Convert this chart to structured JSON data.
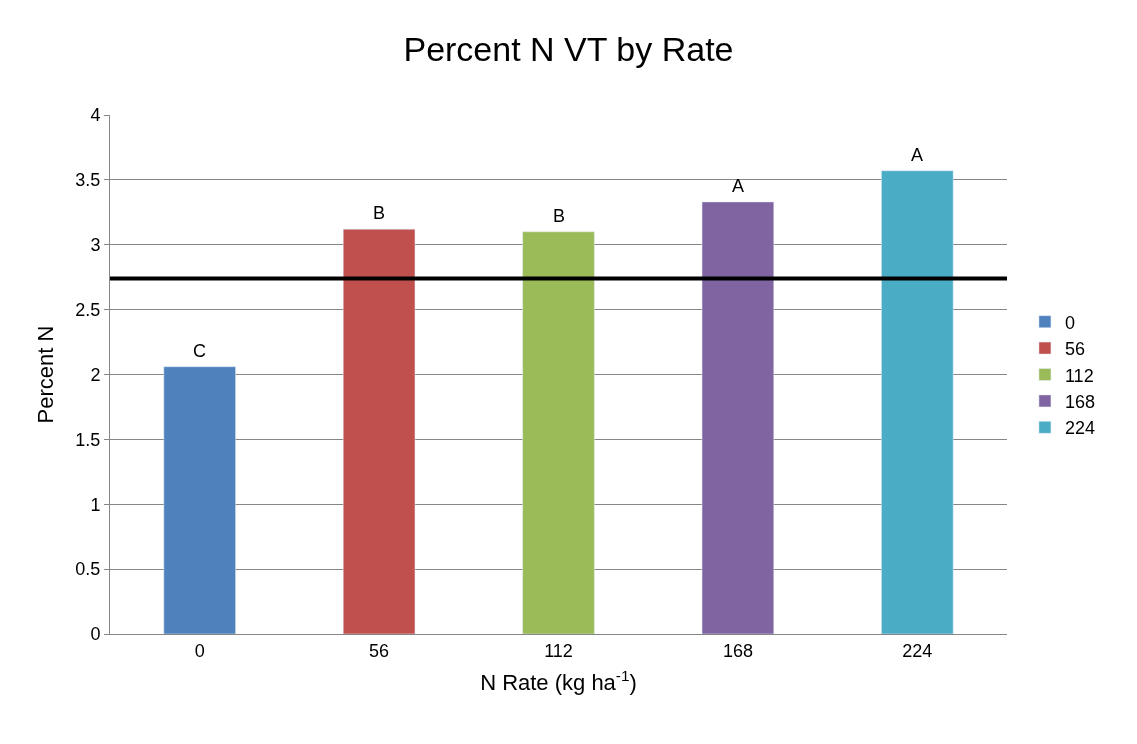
{
  "chart_data": {
    "type": "bar",
    "title": "Percent N VT by Rate",
    "xlabel": "N Rate (kg ha$^{-1}$)",
    "ylabel": "Percent N",
    "categories": [
      "0",
      "56",
      "112",
      "168",
      "224"
    ],
    "series": [
      {
        "name": "0",
        "color": "#4f81bd",
        "values": [
          2.06,
          null,
          null,
          null,
          null
        ]
      },
      {
        "name": "56",
        "color": "#c0504d",
        "values": [
          null,
          3.12,
          null,
          null,
          null
        ]
      },
      {
        "name": "112",
        "color": "#9bbb59",
        "values": [
          null,
          null,
          3.1,
          null,
          null
        ]
      },
      {
        "name": "168",
        "color": "#8064a2",
        "values": [
          null,
          null,
          null,
          3.33,
          null
        ]
      },
      {
        "name": "224",
        "color": "#4bacc6",
        "values": [
          null,
          null,
          null,
          null,
          3.57
        ]
      }
    ],
    "ylim": [
      0,
      4
    ],
    "yticks": [
      0,
      0.5,
      1,
      1.5,
      2,
      2.5,
      3,
      3.5,
      4
    ],
    "grid": "y",
    "legend": "right",
    "ref_lines": [
      {
        "axis": "y",
        "value": 2.74,
        "color": "#000000"
      }
    ],
    "annotations": [
      {
        "text": "C",
        "x": "0",
        "y": 2.06
      },
      {
        "text": "B",
        "x": "56",
        "y": 3.12
      },
      {
        "text": "B",
        "x": "112",
        "y": 3.1
      },
      {
        "text": "A",
        "x": "168",
        "y": 3.33
      },
      {
        "text": "A",
        "x": "224",
        "y": 3.57
      }
    ]
  }
}
